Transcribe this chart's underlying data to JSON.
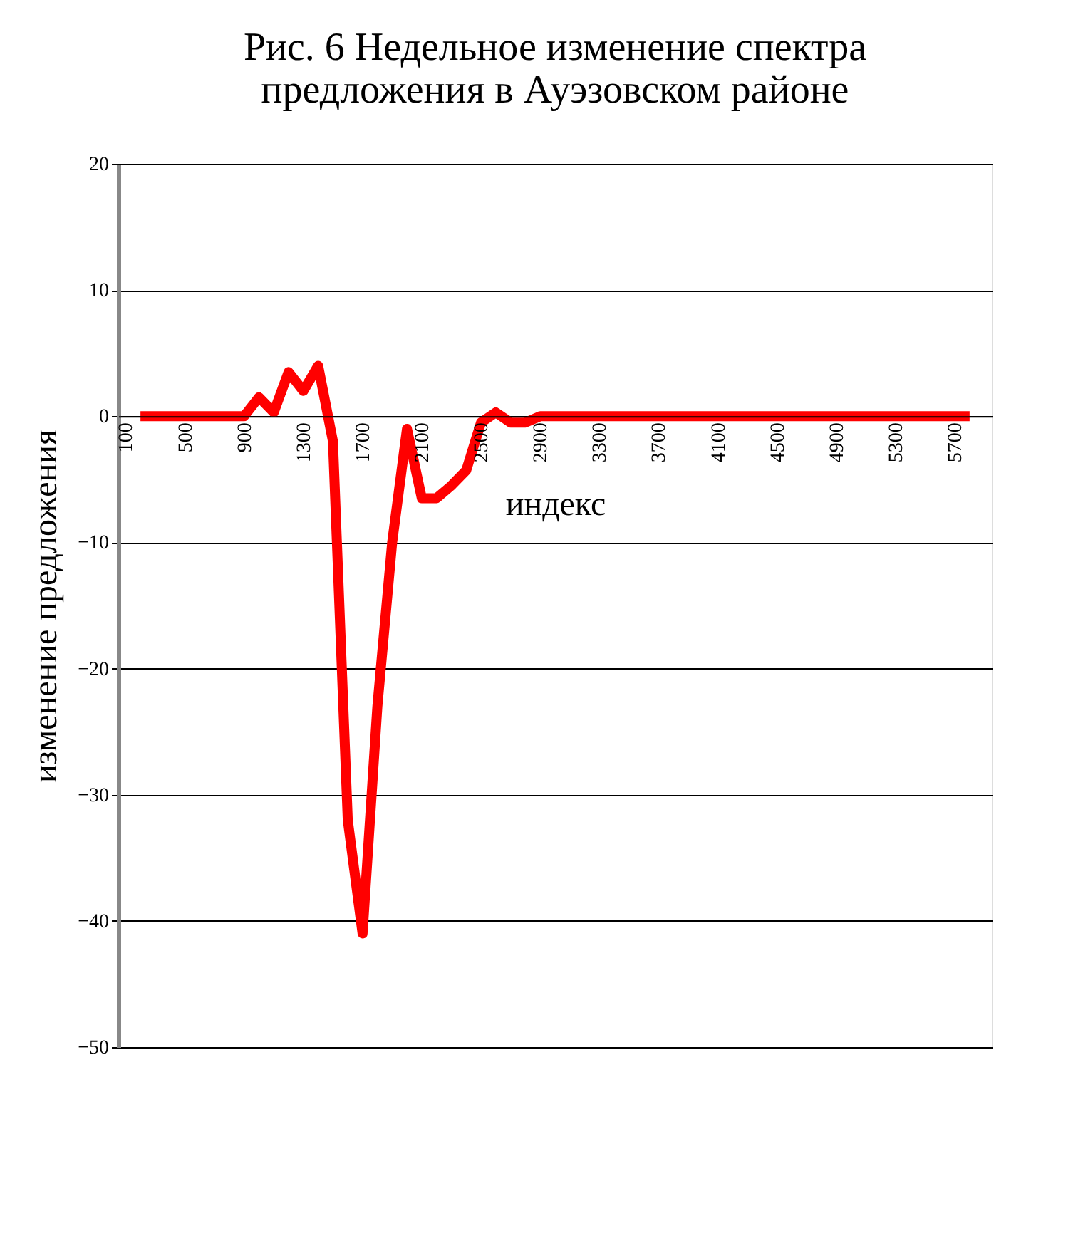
{
  "chart_data": {
    "type": "line",
    "title": [
      "Рис. 6 Недельное изменение спектра",
      "предложения в Ауэзовском районе"
    ],
    "xlabel": "индекс",
    "ylabel": "изменение предложения",
    "categories": [
      "100",
      null,
      null,
      null,
      "500",
      null,
      null,
      null,
      "900",
      null,
      null,
      null,
      "1300",
      null,
      null,
      null,
      "1700",
      null,
      null,
      null,
      "2100",
      null,
      null,
      null,
      "2500",
      null,
      null,
      null,
      "2900",
      null,
      null,
      null,
      "3300",
      null,
      null,
      null,
      "3700",
      null,
      null,
      null,
      "4100",
      null,
      null,
      null,
      "4500",
      null,
      null,
      null,
      "4900",
      null,
      null,
      null,
      "5300",
      null,
      null,
      null,
      "5700",
      null,
      null
    ],
    "series": [
      {
        "color": "#ff0000",
        "values": [
          null,
          0,
          0,
          0,
          0,
          0,
          0,
          0,
          0,
          1.5,
          0.3,
          3.5,
          2,
          4,
          -2,
          -32,
          -41,
          -23,
          -10,
          -1,
          -6.5,
          -6.5,
          -5.5,
          -4.3,
          -0.5,
          0.3,
          -0.5,
          -0.5,
          0,
          0,
          0,
          0,
          0,
          0,
          0,
          0,
          0,
          0,
          0,
          0,
          0,
          0,
          0,
          0,
          0,
          0,
          0,
          0,
          0,
          0,
          0,
          0,
          0,
          0,
          0,
          0,
          0,
          0,
          null
        ]
      }
    ],
    "ylim": [
      -50,
      20
    ],
    "yticks": [
      -50,
      -40,
      -30,
      -20,
      -10,
      0,
      10,
      20
    ],
    "grid": "y",
    "marker": "none",
    "line_style": "solid"
  }
}
